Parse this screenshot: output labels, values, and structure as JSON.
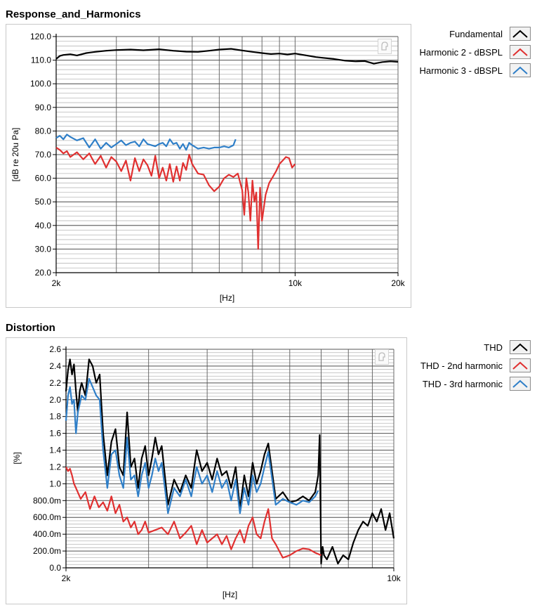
{
  "chart_data": [
    {
      "title": "Response_and_Harmonics",
      "type": "line",
      "xlabel": "[Hz]",
      "ylabel": "[dB re 20u Pa]",
      "xscale": "log",
      "xlim": [
        2000,
        20000
      ],
      "ylim": [
        20,
        120
      ],
      "xticks": [
        {
          "value": 2000,
          "label": "2k"
        },
        {
          "value": 10000,
          "label": "10k"
        },
        {
          "value": 20000,
          "label": "20k"
        }
      ],
      "yticks": [
        {
          "value": 120,
          "label": "120.0"
        },
        {
          "value": 110,
          "label": "110.0"
        },
        {
          "value": 100,
          "label": "100.0"
        },
        {
          "value": 90,
          "label": "90.0"
        },
        {
          "value": 80,
          "label": "80.0"
        },
        {
          "value": 70,
          "label": "70.0"
        },
        {
          "value": 60,
          "label": "60.0"
        },
        {
          "value": 50,
          "label": "50.0"
        },
        {
          "value": 40,
          "label": "40.0"
        },
        {
          "value": 30,
          "label": "30.0"
        },
        {
          "value": 20,
          "label": "20.0"
        }
      ],
      "grid": true,
      "legend_position": "right",
      "series": [
        {
          "name": "Fundamental",
          "color": "#000000",
          "x": [
            2000,
            2050,
            2100,
            2200,
            2300,
            2450,
            2600,
            2800,
            3000,
            3300,
            3600,
            4000,
            4400,
            4800,
            5200,
            5600,
            6000,
            6500,
            7000,
            7500,
            8000,
            8500,
            9000,
            9500,
            10000,
            10500,
            11000,
            11500,
            12000,
            13000,
            14000,
            15000,
            16000,
            17000,
            18000,
            19000,
            20000
          ],
          "y": [
            110.5,
            111.8,
            112.2,
            112.5,
            112.0,
            113.0,
            113.5,
            114.0,
            114.3,
            114.5,
            114.2,
            114.6,
            114.0,
            113.6,
            113.5,
            114.0,
            114.5,
            114.8,
            114.1,
            113.5,
            113.0,
            112.6,
            112.8,
            112.4,
            112.8,
            112.3,
            111.8,
            111.3,
            111.0,
            110.5,
            109.8,
            109.5,
            109.6,
            108.5,
            109.2,
            109.5,
            109.3
          ]
        },
        {
          "name": "Harmonic 2 - dBSPL",
          "color": "#e03030",
          "x": [
            2000,
            2050,
            2100,
            2150,
            2200,
            2300,
            2400,
            2500,
            2600,
            2700,
            2800,
            2900,
            3000,
            3100,
            3200,
            3300,
            3400,
            3500,
            3600,
            3700,
            3800,
            3900,
            4000,
            4100,
            4200,
            4300,
            4400,
            4500,
            4600,
            4700,
            4800,
            4900,
            5000,
            5200,
            5400,
            5600,
            5800,
            6000,
            6200,
            6400,
            6600,
            6800,
            7000,
            7100,
            7200,
            7300,
            7400,
            7500,
            7600,
            7700,
            7800,
            7900,
            8000,
            8200,
            8400,
            8600,
            8800,
            9000,
            9200,
            9400,
            9600,
            9800,
            10000
          ],
          "y": [
            73.0,
            72.0,
            70.5,
            71.5,
            69.0,
            71.0,
            68.0,
            70.5,
            66.0,
            69.5,
            64.5,
            69.0,
            67.0,
            63.0,
            67.5,
            59.0,
            68.5,
            63.0,
            68.0,
            65.5,
            61.0,
            69.5,
            60.0,
            64.5,
            59.0,
            66.0,
            58.5,
            65.0,
            59.0,
            66.5,
            63.5,
            70.0,
            66.0,
            62.0,
            61.5,
            57.0,
            54.5,
            56.5,
            60.0,
            61.5,
            60.5,
            62.0,
            55.0,
            44.5,
            60.0,
            54.0,
            42.0,
            59.0,
            50.0,
            54.0,
            30.0,
            56.0,
            42.0,
            53.0,
            58.0,
            60.5,
            63.0,
            66.0,
            67.5,
            69.0,
            68.5,
            64.5,
            66.0
          ]
        },
        {
          "name": "Harmonic 3 - dBSPL",
          "color": "#2f7fc8",
          "x": [
            2000,
            2050,
            2100,
            2150,
            2200,
            2300,
            2400,
            2500,
            2600,
            2700,
            2800,
            2900,
            3000,
            3100,
            3200,
            3300,
            3400,
            3500,
            3600,
            3700,
            3800,
            3900,
            4000,
            4100,
            4200,
            4300,
            4400,
            4500,
            4600,
            4700,
            4800,
            4900,
            5000,
            5200,
            5400,
            5600,
            5800,
            6000,
            6200,
            6400,
            6600,
            6700
          ],
          "y": [
            77.0,
            78.0,
            76.5,
            78.5,
            77.5,
            76.0,
            77.0,
            73.0,
            76.5,
            72.5,
            75.0,
            73.0,
            74.5,
            76.0,
            74.0,
            75.0,
            75.5,
            73.5,
            76.5,
            74.5,
            74.0,
            73.5,
            74.5,
            75.0,
            73.5,
            76.5,
            74.5,
            75.0,
            72.5,
            74.5,
            72.0,
            75.0,
            74.0,
            72.5,
            73.0,
            72.5,
            73.0,
            73.0,
            73.5,
            73.0,
            74.0,
            76.5
          ]
        }
      ]
    },
    {
      "title": "Distortion",
      "type": "line",
      "xlabel": "[Hz]",
      "ylabel": "[%]",
      "xscale": "log",
      "xlim": [
        2000,
        10000
      ],
      "ylim": [
        0,
        2.6
      ],
      "xticks": [
        {
          "value": 2000,
          "label": "2k"
        },
        {
          "value": 10000,
          "label": "10k"
        }
      ],
      "yticks": [
        {
          "value": 2.6,
          "label": "2.6"
        },
        {
          "value": 2.4,
          "label": "2.4"
        },
        {
          "value": 2.2,
          "label": "2.2"
        },
        {
          "value": 2.0,
          "label": "2.0"
        },
        {
          "value": 1.8,
          "label": "1.8"
        },
        {
          "value": 1.6,
          "label": "1.6"
        },
        {
          "value": 1.4,
          "label": "1.4"
        },
        {
          "value": 1.2,
          "label": "1.2"
        },
        {
          "value": 1.0,
          "label": "1.0"
        },
        {
          "value": 0.8,
          "label": "800.0m"
        },
        {
          "value": 0.6,
          "label": "600.0m"
        },
        {
          "value": 0.4,
          "label": "400.0m"
        },
        {
          "value": 0.2,
          "label": "200.0m"
        },
        {
          "value": 0.0,
          "label": "0.0"
        }
      ],
      "grid": true,
      "legend_position": "right",
      "series": [
        {
          "name": "THD",
          "color": "#000000",
          "x": [
            2000,
            2020,
            2040,
            2060,
            2080,
            2100,
            2120,
            2140,
            2160,
            2200,
            2240,
            2280,
            2320,
            2360,
            2400,
            2450,
            2500,
            2550,
            2600,
            2650,
            2700,
            2750,
            2800,
            2850,
            2900,
            2950,
            3000,
            3050,
            3100,
            3150,
            3200,
            3300,
            3400,
            3500,
            3600,
            3700,
            3800,
            3900,
            4000,
            4100,
            4200,
            4300,
            4400,
            4500,
            4600,
            4700,
            4800,
            4900,
            5000,
            5100,
            5200,
            5300,
            5400,
            5600,
            5800,
            6000,
            6200,
            6400,
            6600,
            6800,
            6900,
            6950,
            7000,
            7050,
            7100,
            7200,
            7400,
            7600,
            7800,
            8000,
            8200,
            8400,
            8600,
            8800,
            9000,
            9200,
            9400,
            9600,
            9800,
            10000
          ],
          "y": [
            2.1,
            2.35,
            2.48,
            2.3,
            2.42,
            2.1,
            1.85,
            2.1,
            2.2,
            2.05,
            2.48,
            2.4,
            2.2,
            2.3,
            1.6,
            1.1,
            1.5,
            1.65,
            1.2,
            1.1,
            1.85,
            1.2,
            1.3,
            0.95,
            1.3,
            1.45,
            1.1,
            1.3,
            1.55,
            1.35,
            1.45,
            0.75,
            1.05,
            0.9,
            1.1,
            0.95,
            1.4,
            1.15,
            1.25,
            1.05,
            1.3,
            1.1,
            1.15,
            0.95,
            1.2,
            0.7,
            1.1,
            0.85,
            1.25,
            1.0,
            1.15,
            1.35,
            1.48,
            0.82,
            0.9,
            0.78,
            0.8,
            0.85,
            0.8,
            0.9,
            1.1,
            1.58,
            0.05,
            0.25,
            0.15,
            0.1,
            0.25,
            0.05,
            0.15,
            0.1,
            0.3,
            0.45,
            0.55,
            0.5,
            0.65,
            0.55,
            0.7,
            0.45,
            0.65,
            0.35
          ]
        },
        {
          "name": "THD - 2nd harmonic",
          "color": "#e03030",
          "x": [
            2000,
            2020,
            2040,
            2060,
            2080,
            2100,
            2150,
            2200,
            2250,
            2300,
            2350,
            2400,
            2450,
            2500,
            2550,
            2600,
            2650,
            2700,
            2750,
            2800,
            2850,
            2900,
            2950,
            3000,
            3100,
            3200,
            3300,
            3400,
            3500,
            3600,
            3700,
            3800,
            3900,
            4000,
            4100,
            4200,
            4300,
            4400,
            4500,
            4600,
            4700,
            4800,
            4900,
            5000,
            5100,
            5200,
            5300,
            5400,
            5500,
            5600,
            5800,
            6000,
            6200,
            6400,
            6600,
            6800,
            7000
          ],
          "y": [
            1.2,
            1.15,
            1.18,
            1.1,
            1.0,
            0.95,
            0.82,
            0.9,
            0.7,
            0.85,
            0.72,
            0.78,
            0.68,
            0.85,
            0.65,
            0.75,
            0.55,
            0.6,
            0.48,
            0.55,
            0.4,
            0.45,
            0.55,
            0.42,
            0.45,
            0.48,
            0.4,
            0.55,
            0.35,
            0.42,
            0.5,
            0.28,
            0.45,
            0.3,
            0.35,
            0.4,
            0.28,
            0.38,
            0.22,
            0.35,
            0.45,
            0.3,
            0.5,
            0.6,
            0.4,
            0.35,
            0.55,
            0.7,
            0.35,
            0.28,
            0.12,
            0.15,
            0.2,
            0.23,
            0.22,
            0.18,
            0.15
          ]
        },
        {
          "name": "THD - 3rd harmonic",
          "color": "#2f7fc8",
          "x": [
            2000,
            2020,
            2040,
            2060,
            2080,
            2100,
            2120,
            2140,
            2160,
            2200,
            2240,
            2280,
            2320,
            2360,
            2400,
            2450,
            2500,
            2550,
            2600,
            2650,
            2700,
            2750,
            2800,
            2850,
            2900,
            2950,
            3000,
            3050,
            3100,
            3150,
            3200,
            3300,
            3400,
            3500,
            3600,
            3700,
            3800,
            3900,
            4000,
            4100,
            4200,
            4300,
            4400,
            4500,
            4600,
            4700,
            4800,
            4900,
            5000,
            5100,
            5200,
            5300,
            5400,
            5600,
            5800,
            6000,
            6200,
            6400,
            6600,
            6800,
            6900
          ],
          "y": [
            1.75,
            2.05,
            2.15,
            1.95,
            2.0,
            1.6,
            1.85,
            1.95,
            2.05,
            2.0,
            2.25,
            2.15,
            2.05,
            2.0,
            1.4,
            0.95,
            1.35,
            1.4,
            1.1,
            0.95,
            1.55,
            1.05,
            1.1,
            0.85,
            1.1,
            1.25,
            0.95,
            1.1,
            1.3,
            1.15,
            1.25,
            0.65,
            0.95,
            0.85,
            1.05,
            0.85,
            1.2,
            1.0,
            1.1,
            0.9,
            1.15,
            0.95,
            1.05,
            0.8,
            1.05,
            0.65,
            0.95,
            0.75,
            1.1,
            0.9,
            1.0,
            1.2,
            1.38,
            0.75,
            0.82,
            0.78,
            0.75,
            0.8,
            0.78,
            0.85,
            0.92
          ]
        }
      ]
    }
  ],
  "ui": {
    "chart1_title": "Response_and_Harmonics",
    "chart2_title": "Distortion",
    "chart1_legend": [
      "Fundamental",
      "Harmonic 2 - dBSPL",
      "Harmonic 3 - dBSPL"
    ],
    "chart2_legend": [
      "THD",
      "THD - 2nd harmonic",
      "THD - 3rd harmonic"
    ]
  }
}
